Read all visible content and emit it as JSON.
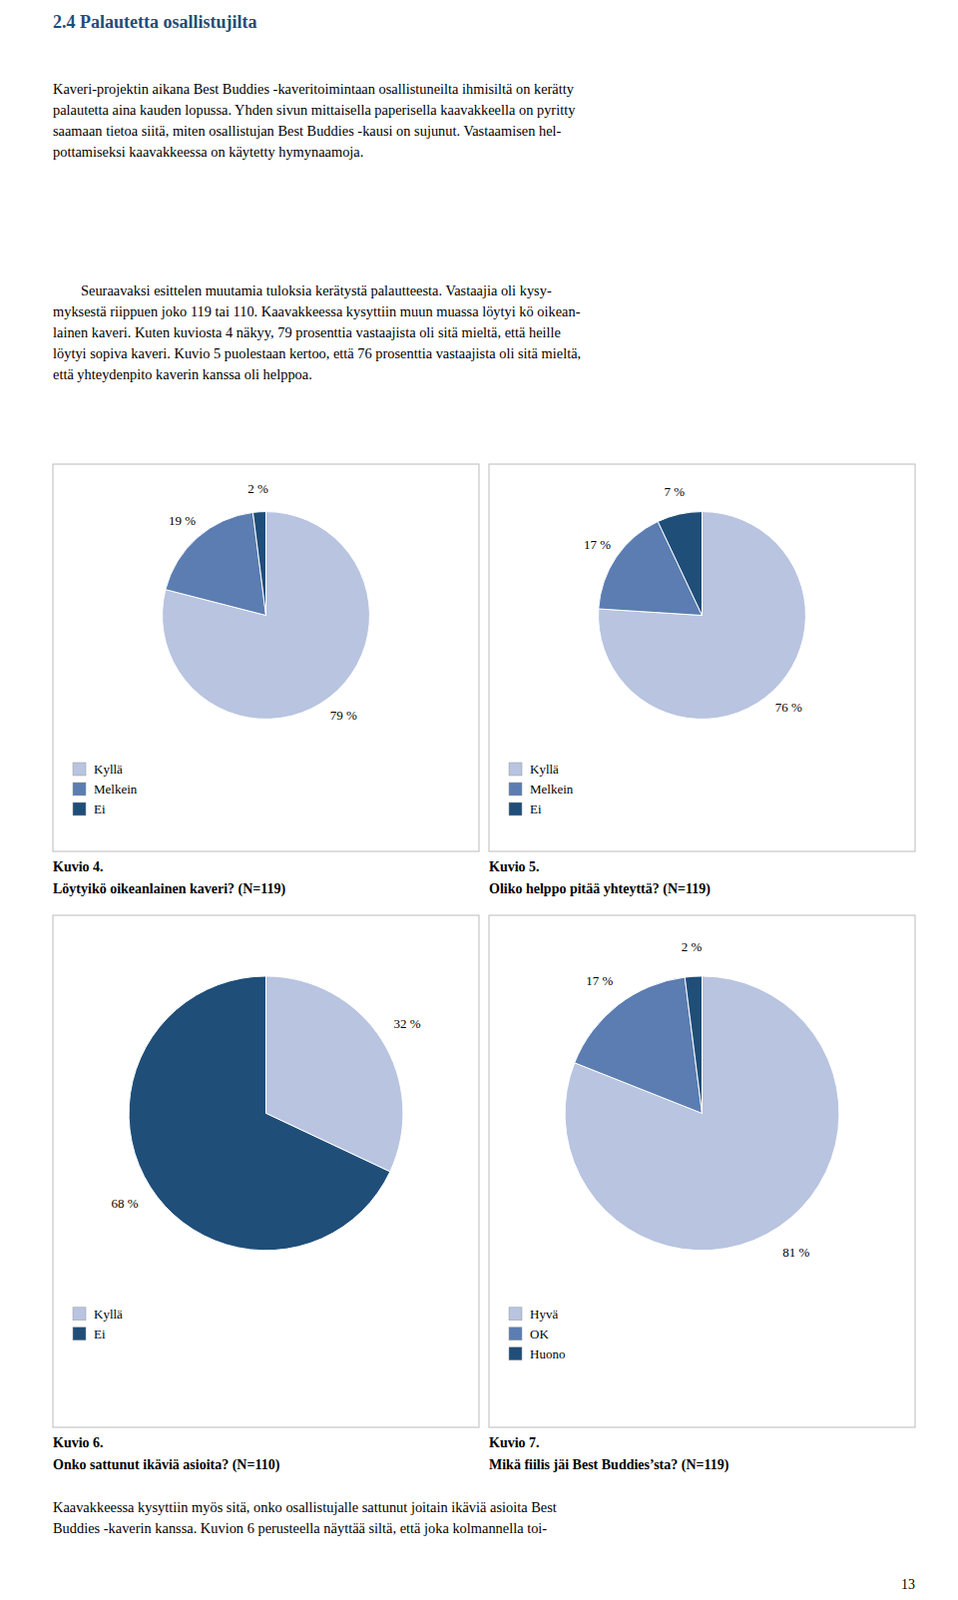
{
  "title": "2.4 Palautetta osallistujilta",
  "paragraphs": [
    [
      "Kaveri-projektin aikana Best Buddies -kaveritoimintaan osallistuneilta ihmisiltä on kerätty",
      "palautetta aina kauden lopussa. Yhden sivun mittaisella paperisella kaavakkeella on pyritty",
      "saamaan tietoa siitä, miten osallistujan Best Buddies -kausi on sujunut. Vastaamisen hel-",
      "pottamiseksi kaavakkeessa on käytetty hymynaamoja."
    ],
    [
      "Seuraavaksi esittelen muutamia tuloksia kerätystä palautteesta. Vastaajia oli kysy-",
      "myksestä riippuen joko 119 tai 110. Kaavakkeessa kysyttiin muun muassa löytyi kö oikean-",
      "lainen kaveri. Kuten kuviosta 4 näkyy, 79 prosenttia vastaajista oli sitä mieltä, että heille",
      "löytyi sopiva kaveri. Kuvio 5 puolestaan kertoo, että 76 prosenttia vastaajista oli sitä mieltä,",
      "että yhteydenpito kaverin kanssa oli helppoa."
    ]
  ],
  "footer": [
    "Kaavakkeessa kysyttiin myös sitä, onko osallistujalle sattunut joitain ikäviä asioita Best",
    "Buddies -kaverin kanssa. Kuvion 6 perusteella näyttää siltä, että joka kolmannella toi-"
  ],
  "page_number": 13,
  "chart_data": [
    {
      "type": "pie",
      "title": "Kuvio 4.",
      "subtitle": "Löytyikö oikeanlainen kaveri? (N=119)",
      "categories": [
        "Kyllä",
        "Melkein",
        "Ei"
      ],
      "values": [
        79,
        19,
        2
      ],
      "value_labels": [
        "79 %",
        "19 %",
        "2 %"
      ],
      "colors": [
        "#B8C4E0",
        "#5B7DB1",
        "#1F4E79"
      ],
      "data_labels": true,
      "legend": "lower left"
    },
    {
      "type": "pie",
      "title": "Kuvio 5.",
      "subtitle": "Oliko helppo pitää yhteyttä? (N=119)",
      "categories": [
        "Kyllä",
        "Melkein",
        "Ei"
      ],
      "values": [
        76,
        17,
        7
      ],
      "value_labels": [
        "76 %",
        "17 %",
        "7 %"
      ],
      "colors": [
        "#B8C4E0",
        "#5B7DB1",
        "#1F4E79"
      ],
      "data_labels": true,
      "legend": "lower left"
    },
    {
      "type": "pie",
      "title": "Kuvio 6.",
      "subtitle": "Onko sattunut ikäviä asioita? (N=110)",
      "categories": [
        "Kyllä",
        "Ei"
      ],
      "values": [
        32,
        68
      ],
      "value_labels": [
        "32 %",
        "68 %"
      ],
      "colors": [
        "#B8C4E0",
        "#1F4E79"
      ],
      "data_labels": true,
      "legend": "lower left"
    },
    {
      "type": "pie",
      "title": "Kuvio 7.",
      "subtitle": "Mikä fiilis jäi Best Buddies’sta? (N=119)",
      "categories": [
        "Hyvä",
        "OK",
        "Huono"
      ],
      "values": [
        81,
        17,
        2
      ],
      "value_labels": [
        "81 %",
        "17 %",
        "2 %"
      ],
      "colors": [
        "#B8C4E0",
        "#5B7DB1",
        "#1F4E79"
      ],
      "data_labels": true,
      "legend": "lower left"
    }
  ]
}
